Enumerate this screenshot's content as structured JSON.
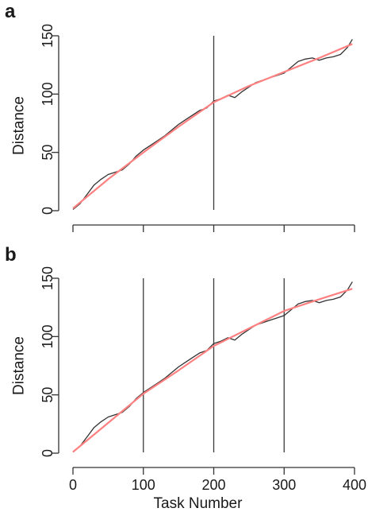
{
  "chart_data": [
    {
      "type": "line",
      "panel_label": "a",
      "xlabel": "",
      "ylabel": "Distance",
      "xlim": [
        0,
        400
      ],
      "ylim": [
        0,
        150
      ],
      "x_ticks": [
        0,
        100,
        200,
        300,
        400
      ],
      "y_ticks": [
        0,
        50,
        100,
        150
      ],
      "x_tick_labels_shown": false,
      "grid": false,
      "legend": "none",
      "breakpoints": [
        200
      ],
      "series": [
        {
          "color": "#333333",
          "x": [
            0,
            10,
            20,
            30,
            40,
            50,
            60,
            70,
            80,
            90,
            100,
            110,
            120,
            130,
            140,
            150,
            160,
            170,
            180,
            190,
            200,
            210,
            220,
            230,
            240,
            250,
            260,
            270,
            280,
            290,
            300,
            310,
            320,
            330,
            340,
            350,
            360,
            370,
            380,
            390,
            397
          ],
          "y": [
            1,
            6,
            14,
            22,
            27,
            31,
            33,
            35,
            40,
            47,
            52,
            56,
            60,
            64,
            69,
            74,
            78,
            82,
            86,
            88,
            94,
            96,
            99,
            97,
            102,
            106,
            110,
            112,
            114,
            116,
            118,
            123,
            128,
            130,
            131,
            129,
            131,
            132,
            134,
            140,
            147
          ]
        },
        {
          "color": "#ff8080",
          "x": [
            0,
            50,
            100,
            150,
            200,
            250,
            300,
            350,
            397
          ],
          "y": [
            2,
            27,
            50,
            72,
            93,
            107,
            119,
            131,
            143
          ]
        }
      ]
    },
    {
      "type": "line",
      "panel_label": "b",
      "xlabel": "Task Number",
      "ylabel": "Distance",
      "xlim": [
        0,
        400
      ],
      "ylim": [
        0,
        150
      ],
      "x_ticks": [
        0,
        100,
        200,
        300,
        400
      ],
      "y_ticks": [
        0,
        50,
        100,
        150
      ],
      "x_tick_labels_shown": true,
      "grid": false,
      "legend": "none",
      "breakpoints": [
        100,
        200,
        300
      ],
      "series": [
        {
          "color": "#333333",
          "x": [
            0,
            10,
            20,
            30,
            40,
            50,
            60,
            70,
            80,
            90,
            100,
            110,
            120,
            130,
            140,
            150,
            160,
            170,
            180,
            190,
            200,
            210,
            220,
            230,
            240,
            250,
            260,
            270,
            280,
            290,
            300,
            310,
            320,
            330,
            340,
            350,
            360,
            370,
            380,
            390,
            397
          ],
          "y": [
            1,
            6,
            14,
            22,
            27,
            31,
            33,
            35,
            40,
            47,
            52,
            56,
            60,
            64,
            69,
            74,
            78,
            82,
            86,
            88,
            94,
            96,
            99,
            97,
            102,
            106,
            110,
            112,
            114,
            116,
            118,
            123,
            128,
            130,
            131,
            129,
            131,
            132,
            134,
            140,
            147
          ]
        },
        {
          "color": "#ff8080",
          "x": [
            0,
            50,
            100,
            150,
            200,
            250,
            300,
            350,
            397
          ],
          "y": [
            1,
            26,
            51,
            71,
            92,
            107,
            122,
            132,
            141
          ]
        }
      ]
    }
  ]
}
